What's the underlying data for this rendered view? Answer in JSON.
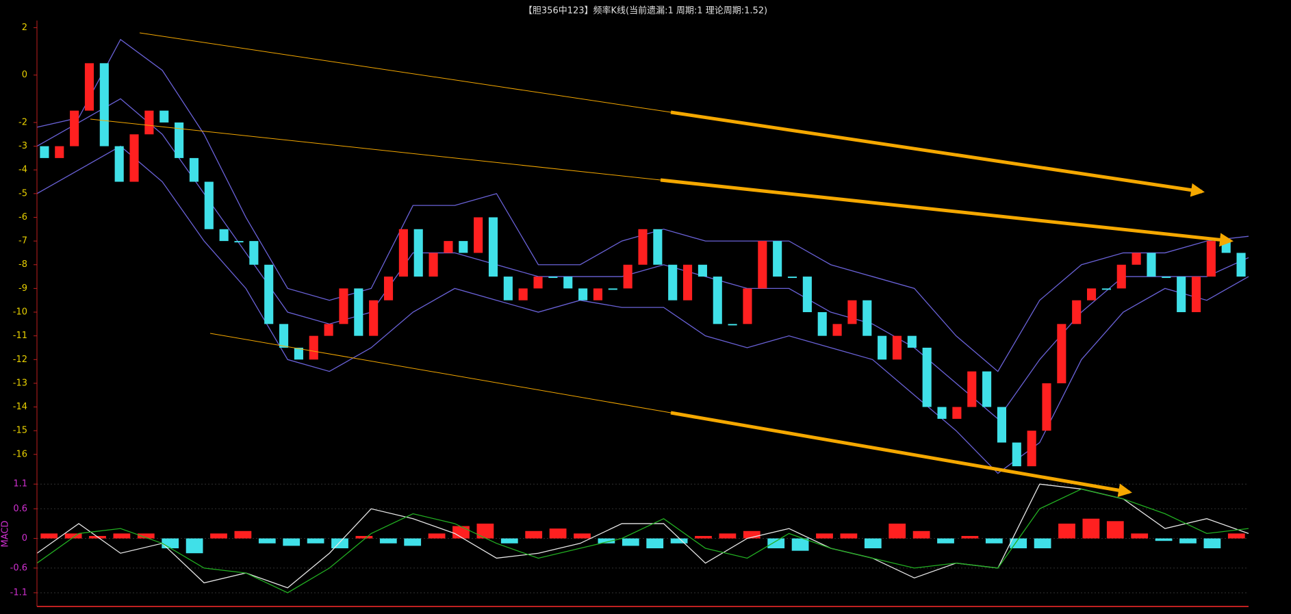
{
  "chart_data": [
    {
      "type": "candlestick",
      "title": "【胆356中123】频率K线(当前遗漏:1 周期:1 理论周期:1.52)",
      "open": [
        -3,
        -3.5,
        -3,
        -1.5,
        0.5,
        -3,
        -4.5,
        -2.5,
        -1.5,
        -2,
        -3.5,
        -4.5,
        -6.5,
        -7,
        -7,
        -8,
        -10.5,
        -11.5,
        -12,
        -11,
        -10.5,
        -9,
        -11,
        -9.5,
        -8.5,
        -6.5,
        -8.5,
        -7.5,
        -7,
        -7.5,
        -6,
        -8.5,
        -9.5,
        -9,
        -8.5,
        -8.5,
        -9,
        -9.5,
        -9,
        -9,
        -8,
        -6.5,
        -8,
        -9.5,
        -8,
        -8.5,
        -10.5,
        -10.5,
        -9,
        -7,
        -8.5,
        -8.5,
        -10,
        -11,
        -10.5,
        -9.5,
        -11,
        -12,
        -11,
        -11.5,
        -14,
        -14.5,
        -14,
        -12.5,
        -14,
        -15.5,
        -16.5,
        -15,
        -13,
        -10.5,
        -9.5,
        -9,
        -9,
        -8,
        -7.5,
        -8.5,
        -8.5,
        -10,
        -8.5,
        -7,
        -7.5
      ],
      "close": [
        -3.5,
        -3,
        -1.5,
        0.5,
        -3,
        -4.5,
        -2.5,
        -1.5,
        -2,
        -3.5,
        -4.5,
        -6.5,
        -7,
        -7,
        -8,
        -10.5,
        -11.5,
        -12,
        -11,
        -10.5,
        -9,
        -11,
        -9.5,
        -8.5,
        -6.5,
        -8.5,
        -7.5,
        -7,
        -7.5,
        -6,
        -8.5,
        -9.5,
        -9,
        -8.5,
        -8.5,
        -9,
        -9.5,
        -9,
        -9,
        -8,
        -6.5,
        -8,
        -9.5,
        -8,
        -8.5,
        -10.5,
        -10.5,
        -9,
        -7,
        -8.5,
        -8.5,
        -10,
        -11,
        -10.5,
        -9.5,
        -11,
        -12,
        -11,
        -11.5,
        -14,
        -14.5,
        -14,
        -12.5,
        -14,
        -15.5,
        -16.5,
        -15,
        -13,
        -10.5,
        -9.5,
        -9,
        -9,
        -8,
        -7.5,
        -8.5,
        -8.5,
        -10,
        -8.5,
        -7,
        -7.5,
        -8.5
      ],
      "up_color": "#ff2020",
      "down_color": "#40e0e8",
      "series": [
        {
          "color": "#6a62d8",
          "values": [
            -2.2,
            -1.8,
            1.5,
            0.2,
            -2.5,
            -6,
            -9,
            -9.5,
            -9,
            -5.5,
            -5.5,
            -5,
            -8,
            -8,
            -7,
            -6.5,
            -7,
            -7,
            -7,
            -8,
            -8.5,
            -9,
            -11,
            -12.5,
            -9.5,
            -8,
            -7.5,
            -7.5,
            -7,
            -6.8
          ]
        },
        {
          "color": "#6a62d8",
          "values": [
            -3,
            -2,
            -1,
            -2.5,
            -5,
            -7.5,
            -10,
            -10.5,
            -10,
            -7.5,
            -7.5,
            -8,
            -8.5,
            -8.5,
            -8.5,
            -8,
            -8.5,
            -9,
            -9,
            -10,
            -10.5,
            -11.5,
            -13,
            -14.5,
            -12,
            -10,
            -8.5,
            -8.5,
            -8.5,
            -7.7
          ]
        },
        {
          "color": "#6a62d8",
          "values": [
            -5,
            -4,
            -3,
            -4.5,
            -7,
            -9,
            -12,
            -12.5,
            -11.5,
            -10,
            -9,
            -9.5,
            -10,
            -9.5,
            -9.8,
            -9.8,
            -11,
            -11.5,
            -11,
            -11.5,
            -12,
            -13.5,
            -15,
            -16.8,
            -15.5,
            -12,
            -10,
            -9,
            -9.5,
            -8.5
          ]
        }
      ],
      "ylim": [
        -16.9,
        2.3
      ],
      "yticks": [
        2,
        0,
        -2,
        -3,
        -4,
        -5,
        -6,
        -7,
        -8,
        -9,
        -10,
        -11,
        -12,
        -13,
        -14,
        -15,
        -16
      ],
      "tick_color": "#e8d000"
    },
    {
      "type": "macd",
      "label": "MACD",
      "series": [
        {
          "color": "#e8e8e8",
          "values": [
            -0.3,
            0.3,
            -0.3,
            -0.1,
            -0.9,
            -0.7,
            -1.0,
            -0.3,
            0.6,
            0.4,
            0.1,
            -0.4,
            -0.3,
            -0.1,
            0.3,
            0.3,
            -0.5,
            0.0,
            0.2,
            -0.2,
            -0.4,
            -0.8,
            -0.5,
            -0.6,
            1.1,
            1.0,
            0.8,
            0.2,
            0.4,
            0.1
          ]
        },
        {
          "color": "#22b022",
          "values": [
            -0.5,
            0.1,
            0.2,
            -0.1,
            -0.6,
            -0.7,
            -1.1,
            -0.6,
            0.1,
            0.5,
            0.3,
            -0.1,
            -0.4,
            -0.2,
            0.0,
            0.4,
            -0.2,
            -0.4,
            0.1,
            -0.2,
            -0.4,
            -0.6,
            -0.5,
            -0.6,
            0.6,
            1.0,
            0.8,
            0.5,
            0.1,
            0.2
          ]
        }
      ],
      "histogram": [
        0.1,
        0.1,
        0.05,
        0.1,
        0.1,
        -0.2,
        -0.3,
        0.1,
        0.15,
        -0.1,
        -0.15,
        -0.1,
        -0.2,
        0.05,
        -0.1,
        -0.15,
        0.1,
        0.25,
        0.3,
        -0.1,
        0.15,
        0.2,
        0.1,
        -0.1,
        -0.15,
        -0.2,
        -0.1,
        0.05,
        0.1,
        0.15,
        -0.2,
        -0.25,
        0.1,
        0.1,
        -0.2,
        0.3,
        0.15,
        -0.1,
        0.05,
        -0.1,
        -0.2,
        -0.2,
        0.3,
        0.4,
        0.35,
        0.1,
        -0.05,
        -0.1,
        -0.2,
        0.1
      ],
      "up_color": "#ff2020",
      "down_color": "#40e0e8",
      "ylim": [
        -1.35,
        1.2
      ],
      "yticks": [
        1.1,
        0.6,
        0,
        -0.6,
        -1.1
      ],
      "tick_color": "#d030d0",
      "grid": true
    }
  ]
}
